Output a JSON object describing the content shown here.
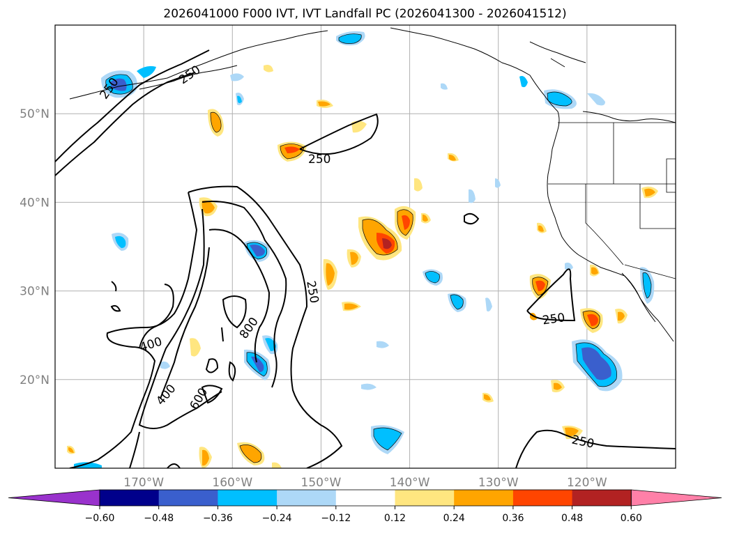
{
  "title": "2026041000 F000 IVT, IVT Landfall PC (2026041300 - 2026041512)",
  "map": {
    "lon_range": [
      -180,
      -110
    ],
    "lat_range": [
      10,
      60
    ],
    "lon_labels": [
      {
        "lon": -170,
        "label": "170°W"
      },
      {
        "lon": -160,
        "label": "160°W"
      },
      {
        "lon": -150,
        "label": "150°W"
      },
      {
        "lon": -140,
        "label": "140°W"
      },
      {
        "lon": -130,
        "label": "130°W"
      },
      {
        "lon": -120,
        "label": "120°W"
      }
    ],
    "lat_labels": [
      {
        "lat": 50,
        "label": "50°N"
      },
      {
        "lat": 40,
        "label": "40°N"
      },
      {
        "lat": 30,
        "label": "30°N"
      },
      {
        "lat": 20,
        "label": "20°N"
      }
    ],
    "contour_labels": [
      "250",
      "250",
      "250",
      "250",
      "250",
      "250",
      "400",
      "400",
      "600",
      "800"
    ]
  },
  "colorbar": {
    "ticks": [
      "−0.60",
      "−0.48",
      "−0.36",
      "−0.24",
      "−0.12",
      "0.12",
      "0.24",
      "0.36",
      "0.48",
      "0.60"
    ],
    "colors": [
      "#9932cc",
      "#00008b",
      "#3a5fcd",
      "#00bfff",
      "#add8f7",
      "#ffffff",
      "#ffe680",
      "#ffa500",
      "#ff4500",
      "#b22222",
      "#ff80a8"
    ]
  },
  "legend_colors": {
    "neg_strong": "#3a5fcd",
    "neg_mid": "#00bfff",
    "neg_weak": "#add8f7",
    "pos_weak": "#ffe680",
    "pos_mid": "#ffa500",
    "pos_strong": "#ff4500",
    "pos_max": "#b22222"
  }
}
